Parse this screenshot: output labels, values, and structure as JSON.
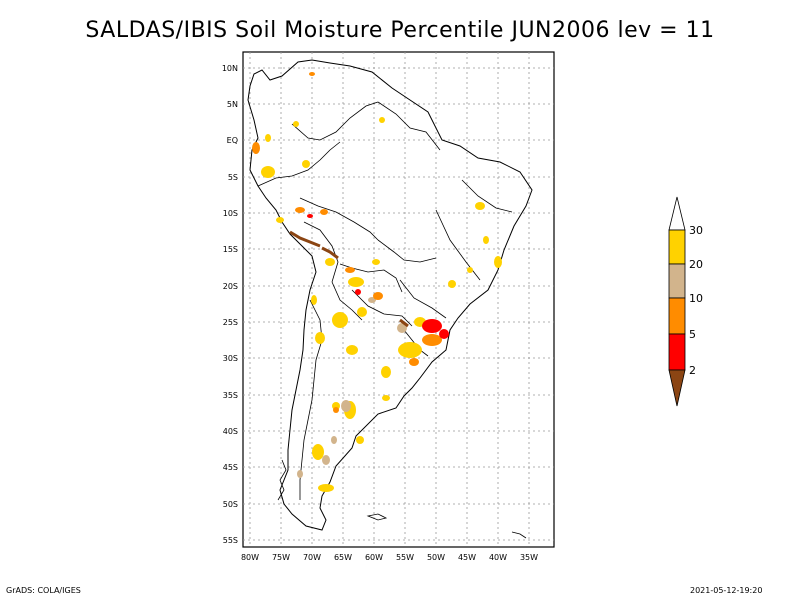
{
  "title": "SALDAS/IBIS Soil Moisture Percentile JUN2006 lev = 11",
  "footer_left": "GrADS: COLA/IGES",
  "footer_right": "2021-05-12-19:20",
  "lat_ticks": [
    "10N",
    "5N",
    "EQ",
    "5S",
    "10S",
    "15S",
    "20S",
    "25S",
    "30S",
    "35S",
    "40S",
    "45S",
    "50S",
    "55S"
  ],
  "lon_ticks": [
    "80W",
    "75W",
    "70W",
    "65W",
    "60W",
    "55W",
    "50W",
    "45W",
    "40W",
    "35W"
  ],
  "colorbar": {
    "labels": [
      "30",
      "20",
      "10",
      "5",
      "2"
    ],
    "colors": {
      "above_30": "#ffffff",
      "20_30": "#ffd200",
      "10_20": "#d2b48c",
      "5_10": "#ff8c00",
      "2_5": "#ff0000",
      "below_2": "#8b4513"
    }
  },
  "map_colors": {
    "coast": "#000000",
    "grid": "#999999"
  }
}
